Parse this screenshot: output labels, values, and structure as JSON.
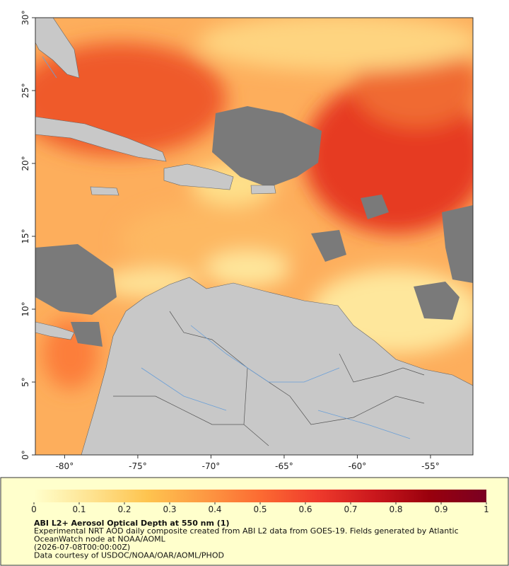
{
  "map": {
    "xlim": [
      -82,
      -52.1
    ],
    "ylim": [
      0,
      30
    ],
    "xticks": [
      {
        "value": -80,
        "label": "-80°"
      },
      {
        "value": -75,
        "label": "-75°"
      },
      {
        "value": -70,
        "label": "-70°"
      },
      {
        "value": -65,
        "label": "-65°"
      },
      {
        "value": -60,
        "label": "-60°"
      },
      {
        "value": -55,
        "label": "-55°"
      }
    ],
    "yticks": [
      {
        "value": 0,
        "label": "0°"
      },
      {
        "value": 5,
        "label": "5°"
      },
      {
        "value": 10,
        "label": "10°"
      },
      {
        "value": 15,
        "label": "15°"
      },
      {
        "value": 20,
        "label": "20°"
      },
      {
        "value": 25,
        "label": "25°"
      },
      {
        "value": 30,
        "label": "30°"
      }
    ]
  },
  "colorbar": {
    "lim": [
      0,
      1
    ],
    "ticks": [
      0,
      0.1,
      0.2,
      0.3,
      0.4,
      0.5,
      0.6,
      0.7,
      0.8,
      0.9,
      1
    ],
    "colormap": [
      "#ffffcc",
      "#fee391",
      "#fec44f",
      "#fd9a43",
      "#fc6b32",
      "#ef3b2c",
      "#cb181d",
      "#99000d",
      "#7a0022"
    ]
  },
  "legend": {
    "title": "ABI L2+ Aerosol Optical Depth at 550 nm (1)",
    "lines": [
      "Experimental NRT AOD daily composite created from ABI L2 data from GOES-19. Fields generated by Atlantic",
      "OceanWatch node at NOAA/AOML",
      "(2026-07-08T00:00:00Z)",
      "Data courtesy of USDOC/NOAA/OAR/AOML/PHOD"
    ]
  }
}
